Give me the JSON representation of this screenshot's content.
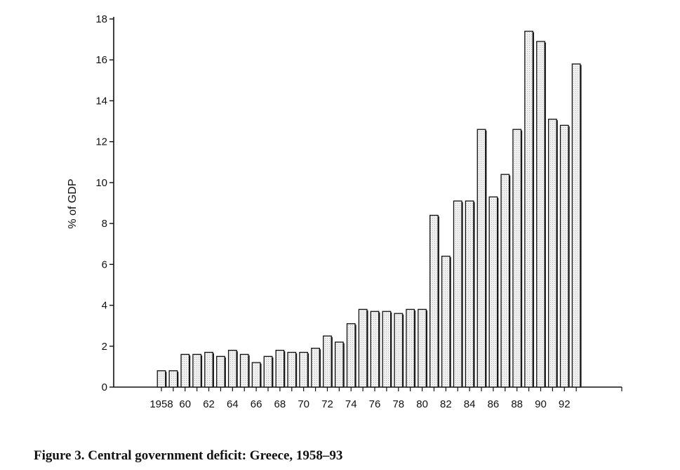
{
  "caption": {
    "figure_label": "Figure 3.",
    "text": "Central government deficit: Greece, 1958–93"
  },
  "colors": {
    "ink": "#111111",
    "bar_fill": "#ececec",
    "bar_shadow": "#1a1a1a",
    "background": "#ffffff"
  },
  "chart_data": {
    "type": "bar",
    "title": "",
    "xlabel": "",
    "ylabel": "% of GDP",
    "ylim": [
      0,
      18
    ],
    "yticks": [
      0,
      2,
      4,
      6,
      8,
      10,
      12,
      14,
      16,
      18
    ],
    "grid": false,
    "legend": "none",
    "categories": [
      1958,
      1959,
      1960,
      1961,
      1962,
      1963,
      1964,
      1965,
      1966,
      1967,
      1968,
      1969,
      1970,
      1971,
      1972,
      1973,
      1974,
      1975,
      1976,
      1977,
      1978,
      1979,
      1980,
      1981,
      1982,
      1983,
      1984,
      1985,
      1986,
      1987,
      1988,
      1989,
      1990,
      1991,
      1992,
      1993
    ],
    "xtick_labels": [
      {
        "year": 1958,
        "label": "1958"
      },
      {
        "year": 1960,
        "label": "60"
      },
      {
        "year": 1962,
        "label": "62"
      },
      {
        "year": 1964,
        "label": "64"
      },
      {
        "year": 1966,
        "label": "66"
      },
      {
        "year": 1968,
        "label": "68"
      },
      {
        "year": 1970,
        "label": "70"
      },
      {
        "year": 1972,
        "label": "72"
      },
      {
        "year": 1974,
        "label": "74"
      },
      {
        "year": 1976,
        "label": "76"
      },
      {
        "year": 1978,
        "label": "78"
      },
      {
        "year": 1980,
        "label": "80"
      },
      {
        "year": 1982,
        "label": "82"
      },
      {
        "year": 1984,
        "label": "84"
      },
      {
        "year": 1986,
        "label": "86"
      },
      {
        "year": 1988,
        "label": "88"
      },
      {
        "year": 1990,
        "label": "90"
      },
      {
        "year": 1992,
        "label": "92"
      }
    ],
    "values": [
      0.8,
      0.8,
      1.6,
      1.6,
      1.7,
      1.5,
      1.8,
      1.6,
      1.2,
      1.5,
      1.8,
      1.7,
      1.7,
      1.9,
      2.5,
      2.2,
      3.1,
      3.8,
      3.7,
      3.7,
      3.6,
      3.8,
      3.8,
      8.4,
      6.4,
      9.1,
      9.1,
      12.6,
      9.3,
      10.4,
      12.6,
      17.4,
      16.9,
      13.1,
      12.8,
      15.8
    ]
  }
}
